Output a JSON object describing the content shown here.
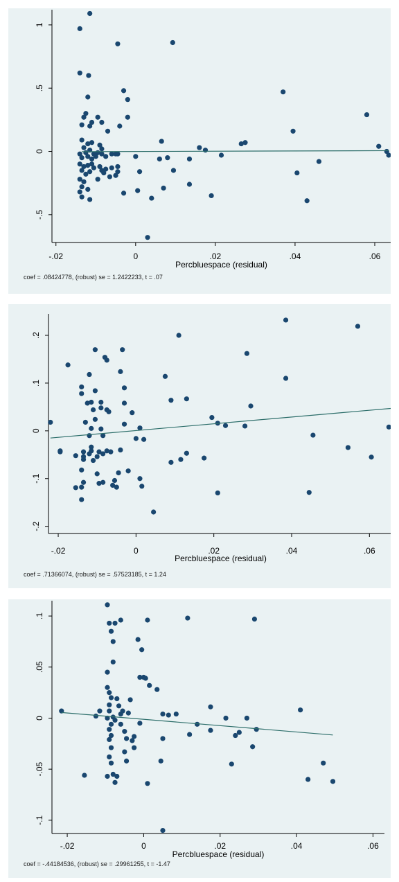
{
  "chart_data": [
    {
      "type": "scatter",
      "xlabel": "Percbluespace (residual)",
      "ylabel": "",
      "xlim": [
        -0.021,
        0.064
      ],
      "ylim": [
        -0.72,
        1.12
      ],
      "x_ticks": [
        -0.02,
        0,
        0.02,
        0.04,
        0.06
      ],
      "x_tick_labels": [
        "-.02",
        "0",
        ".02",
        ".04",
        ".06"
      ],
      "y_ticks": [
        -0.5,
        0,
        0.5,
        1
      ],
      "y_tick_labels": [
        "-.5",
        "0",
        ".5",
        "1"
      ],
      "fit_line": {
        "x": [
          -0.0135,
          0.0635
        ],
        "y": [
          -0.002,
          0.006
        ]
      },
      "note": "coef = .08424778, (robust) se = 1.2422233, t = .07",
      "points": [
        [
          -0.014,
          0.97
        ],
        [
          -0.0115,
          1.09
        ],
        [
          -0.0045,
          0.85
        ],
        [
          0.0093,
          0.86
        ],
        [
          -0.014,
          0.62
        ],
        [
          -0.0118,
          0.6
        ],
        [
          -0.003,
          0.48
        ],
        [
          -0.002,
          0.41
        ],
        [
          -0.012,
          0.43
        ],
        [
          -0.0125,
          0.3
        ],
        [
          -0.013,
          0.27
        ],
        [
          -0.0095,
          0.27
        ],
        [
          -0.011,
          0.23
        ],
        [
          -0.0135,
          0.21
        ],
        [
          -0.0115,
          0.2
        ],
        [
          -0.0085,
          0.23
        ],
        [
          -0.007,
          0.16
        ],
        [
          -0.004,
          0.2
        ],
        [
          -0.002,
          0.27
        ],
        [
          -0.0135,
          0.09
        ],
        [
          -0.012,
          0.06
        ],
        [
          -0.011,
          0.07
        ],
        [
          -0.009,
          0.05
        ],
        [
          -0.0085,
          0.02
        ],
        [
          -0.013,
          0.03
        ],
        [
          -0.0125,
          -0.01
        ],
        [
          -0.0115,
          0.01
        ],
        [
          -0.0105,
          -0.02
        ],
        [
          -0.0095,
          -0.01
        ],
        [
          -0.014,
          -0.02
        ],
        [
          -0.0135,
          -0.05
        ],
        [
          -0.012,
          -0.04
        ],
        [
          -0.011,
          -0.06
        ],
        [
          -0.01,
          -0.04
        ],
        [
          -0.0085,
          -0.02
        ],
        [
          -0.0075,
          -0.04
        ],
        [
          -0.006,
          -0.02
        ],
        [
          -0.005,
          -0.02
        ],
        [
          -0.014,
          -0.1
        ],
        [
          -0.013,
          -0.12
        ],
        [
          -0.012,
          -0.11
        ],
        [
          -0.011,
          -0.1
        ],
        [
          -0.0105,
          -0.13
        ],
        [
          -0.009,
          -0.12
        ],
        [
          -0.0085,
          -0.15
        ],
        [
          -0.0075,
          -0.14
        ],
        [
          -0.006,
          -0.13
        ],
        [
          -0.0045,
          -0.12
        ],
        [
          -0.0135,
          -0.15
        ],
        [
          -0.0125,
          -0.18
        ],
        [
          -0.0115,
          -0.16
        ],
        [
          -0.008,
          -0.17
        ],
        [
          -0.0065,
          -0.2
        ],
        [
          -0.014,
          -0.22
        ],
        [
          -0.013,
          -0.24
        ],
        [
          -0.0135,
          -0.28
        ],
        [
          -0.012,
          -0.3
        ],
        [
          -0.0095,
          -0.22
        ],
        [
          -0.005,
          -0.19
        ],
        [
          -0.0045,
          -0.16
        ],
        [
          -0.0135,
          -0.36
        ],
        [
          -0.0115,
          -0.38
        ],
        [
          -0.003,
          -0.33
        ],
        [
          -0.014,
          -0.32
        ],
        [
          -0.0045,
          -0.02
        ],
        [
          0.0,
          -0.04
        ],
        [
          0.001,
          -0.16
        ],
        [
          0.0005,
          -0.31
        ],
        [
          0.003,
          -0.68
        ],
        [
          0.004,
          -0.37
        ],
        [
          0.006,
          -0.06
        ],
        [
          0.0065,
          0.08
        ],
        [
          0.007,
          -0.29
        ],
        [
          0.008,
          -0.05
        ],
        [
          0.0095,
          -0.15
        ],
        [
          0.0135,
          -0.06
        ],
        [
          0.0135,
          -0.26
        ],
        [
          0.016,
          0.03
        ],
        [
          0.0175,
          0.01
        ],
        [
          0.019,
          -0.35
        ],
        [
          0.0215,
          -0.03
        ],
        [
          0.0265,
          0.06
        ],
        [
          0.0275,
          0.07
        ],
        [
          0.037,
          0.47
        ],
        [
          0.0395,
          0.16
        ],
        [
          0.0405,
          -0.17
        ],
        [
          0.043,
          -0.39
        ],
        [
          0.046,
          -0.08
        ],
        [
          0.058,
          0.29
        ],
        [
          0.061,
          0.04
        ],
        [
          0.063,
          0.0
        ],
        [
          0.0635,
          -0.03
        ]
      ]
    },
    {
      "type": "scatter",
      "xlabel": "Percbluespace (residual)",
      "ylabel": "",
      "xlim": [
        -0.0225,
        0.066
      ],
      "ylim": [
        -0.215,
        0.245
      ],
      "x_ticks": [
        -0.02,
        0,
        0.02,
        0.04,
        0.06
      ],
      "x_tick_labels": [
        "-.02",
        "0",
        ".02",
        ".04",
        ".06"
      ],
      "y_ticks": [
        -0.2,
        -0.1,
        0,
        0.1,
        0.2
      ],
      "y_tick_labels": [
        "-.2",
        "-.1",
        "0",
        ".1",
        ".2"
      ],
      "fit_line": {
        "x": [
          -0.022,
          0.0655
        ],
        "y": [
          -0.015,
          0.047
        ]
      },
      "note": "coef = .71366074, (robust) se = .57523185, t = 1.24",
      "points": [
        [
          -0.022,
          0.018
        ],
        [
          -0.0195,
          -0.042
        ],
        [
          -0.0175,
          0.138
        ],
        [
          -0.0195,
          -0.044
        ],
        [
          -0.0155,
          -0.119
        ],
        [
          -0.0155,
          -0.052
        ],
        [
          -0.014,
          -0.118
        ],
        [
          -0.014,
          -0.144
        ],
        [
          -0.014,
          -0.082
        ],
        [
          -0.014,
          0.092
        ],
        [
          -0.014,
          0.078
        ],
        [
          -0.0135,
          -0.108
        ],
        [
          -0.0135,
          -0.06
        ],
        [
          -0.0135,
          -0.044
        ],
        [
          -0.013,
          0.018
        ],
        [
          -0.012,
          0.118
        ],
        [
          -0.0125,
          0.058
        ],
        [
          -0.012,
          -0.01
        ],
        [
          -0.0115,
          0.005
        ],
        [
          -0.0115,
          -0.034
        ],
        [
          -0.0115,
          -0.042
        ],
        [
          -0.0115,
          0.06
        ],
        [
          -0.011,
          0.044
        ],
        [
          -0.011,
          -0.062
        ],
        [
          -0.0105,
          0.084
        ],
        [
          -0.0105,
          0.024
        ],
        [
          -0.01,
          -0.054
        ],
        [
          -0.01,
          -0.09
        ],
        [
          -0.0095,
          -0.044
        ],
        [
          -0.0095,
          -0.11
        ],
        [
          -0.009,
          0.06
        ],
        [
          -0.009,
          0.048
        ],
        [
          -0.009,
          0.004
        ],
        [
          -0.0085,
          -0.01
        ],
        [
          -0.0085,
          -0.048
        ],
        [
          -0.0085,
          -0.108
        ],
        [
          -0.008,
          0.154
        ],
        [
          -0.0075,
          0.148
        ],
        [
          -0.0075,
          0.044
        ],
        [
          -0.007,
          0.04
        ],
        [
          -0.0065,
          -0.044
        ],
        [
          -0.006,
          -0.114
        ],
        [
          -0.0055,
          -0.104
        ],
        [
          -0.005,
          -0.118
        ],
        [
          -0.0045,
          -0.088
        ],
        [
          -0.004,
          -0.04
        ],
        [
          -0.004,
          0.124
        ],
        [
          -0.0035,
          0.17
        ],
        [
          -0.003,
          0.09
        ],
        [
          -0.003,
          0.058
        ],
        [
          -0.003,
          0.014
        ],
        [
          -0.002,
          -0.084
        ],
        [
          -0.001,
          0.038
        ],
        [
          0.0,
          -0.016
        ],
        [
          0.001,
          0.006
        ],
        [
          0.001,
          -0.1
        ],
        [
          0.0015,
          -0.116
        ],
        [
          0.002,
          -0.018
        ],
        [
          0.0045,
          -0.17
        ],
        [
          0.0075,
          0.114
        ],
        [
          0.009,
          0.064
        ],
        [
          0.009,
          -0.066
        ],
        [
          0.011,
          0.2
        ],
        [
          0.0115,
          -0.06
        ],
        [
          0.013,
          0.067
        ],
        [
          0.013,
          -0.047
        ],
        [
          0.0175,
          -0.057
        ],
        [
          0.0195,
          0.028
        ],
        [
          0.021,
          0.016
        ],
        [
          0.021,
          -0.13
        ],
        [
          0.023,
          0.011
        ],
        [
          0.028,
          0.01
        ],
        [
          0.0285,
          0.162
        ],
        [
          0.0295,
          0.052
        ],
        [
          0.0385,
          0.232
        ],
        [
          0.0385,
          0.11
        ],
        [
          0.0445,
          -0.129
        ],
        [
          0.0455,
          -0.009
        ],
        [
          0.0545,
          -0.035
        ],
        [
          0.057,
          0.219
        ],
        [
          0.0605,
          -0.055
        ],
        [
          0.065,
          0.008
        ],
        [
          -0.0105,
          0.17
        ],
        [
          -0.0135,
          -0.054
        ],
        [
          -0.012,
          -0.048
        ],
        [
          -0.0075,
          -0.042
        ]
      ]
    },
    {
      "type": "scatter",
      "xlabel": "Percbluespace (residual)",
      "ylabel": "",
      "xlim": [
        -0.024,
        0.063
      ],
      "ylim": [
        -0.113,
        0.115
      ],
      "x_ticks": [
        -0.02,
        0,
        0.02,
        0.04,
        0.06
      ],
      "x_tick_labels": [
        "-.02",
        "0",
        ".02",
        ".04",
        ".06"
      ],
      "y_ticks": [
        -0.1,
        -0.05,
        0,
        0.05,
        0.1
      ],
      "y_tick_labels": [
        "-.1",
        "-.05",
        "0",
        ".05",
        ".1"
      ],
      "fit_line": {
        "x": [
          -0.0215,
          0.0495
        ],
        "y": [
          0.0055,
          -0.0165
        ]
      },
      "note": "coef = -.44184536, (robust) se = .29961255, t = -1.47",
      "points": [
        [
          -0.0215,
          0.007
        ],
        [
          -0.0155,
          -0.056
        ],
        [
          -0.0125,
          0.002
        ],
        [
          -0.0115,
          0.007
        ],
        [
          -0.0095,
          0.111
        ],
        [
          -0.009,
          0.093
        ],
        [
          -0.0085,
          0.085
        ],
        [
          -0.008,
          0.075
        ],
        [
          -0.008,
          0.055
        ],
        [
          -0.0075,
          0.093
        ],
        [
          -0.006,
          0.096
        ],
        [
          -0.0095,
          0.045
        ],
        [
          -0.0095,
          0.03
        ],
        [
          -0.009,
          0.025
        ],
        [
          -0.0085,
          0.02
        ],
        [
          -0.009,
          0.013
        ],
        [
          -0.009,
          0.007
        ],
        [
          -0.008,
          0.001
        ],
        [
          -0.0095,
          0.0
        ],
        [
          -0.0085,
          -0.006
        ],
        [
          -0.009,
          -0.011
        ],
        [
          -0.0085,
          -0.017
        ],
        [
          -0.009,
          -0.021
        ],
        [
          -0.0085,
          -0.029
        ],
        [
          -0.009,
          -0.038
        ],
        [
          -0.0085,
          -0.044
        ],
        [
          -0.008,
          -0.055
        ],
        [
          -0.0075,
          -0.063
        ],
        [
          -0.0095,
          -0.057
        ],
        [
          -0.007,
          -0.057
        ],
        [
          -0.007,
          0.019
        ],
        [
          -0.0065,
          0.012
        ],
        [
          -0.006,
          0.004
        ],
        [
          -0.006,
          -0.006
        ],
        [
          -0.005,
          -0.013
        ],
        [
          -0.005,
          -0.033
        ],
        [
          -0.0045,
          -0.042
        ],
        [
          -0.004,
          0.005
        ],
        [
          -0.0035,
          0.018
        ],
        [
          -0.0025,
          -0.018
        ],
        [
          -0.0025,
          -0.029
        ],
        [
          -0.0015,
          0.077
        ],
        [
          -0.001,
          0.04
        ],
        [
          -0.001,
          -0.005
        ],
        [
          -0.0005,
          0.067
        ],
        [
          0.0,
          0.04
        ],
        [
          0.0005,
          0.039
        ],
        [
          0.001,
          0.096
        ],
        [
          0.001,
          -0.064
        ],
        [
          0.0015,
          0.032
        ],
        [
          0.0035,
          0.028
        ],
        [
          0.0045,
          -0.042
        ],
        [
          0.005,
          0.004
        ],
        [
          0.005,
          -0.02
        ],
        [
          0.005,
          -0.11
        ],
        [
          0.0065,
          0.003
        ],
        [
          0.0085,
          0.004
        ],
        [
          0.0115,
          0.098
        ],
        [
          0.012,
          -0.016
        ],
        [
          0.014,
          -0.006
        ],
        [
          0.0175,
          0.011
        ],
        [
          0.0175,
          -0.012
        ],
        [
          0.0215,
          0.0
        ],
        [
          0.023,
          -0.045
        ],
        [
          0.024,
          -0.017
        ],
        [
          0.025,
          -0.014
        ],
        [
          0.027,
          0.0
        ],
        [
          0.0285,
          -0.028
        ],
        [
          0.029,
          0.097
        ],
        [
          0.0295,
          -0.011
        ],
        [
          0.041,
          0.008
        ],
        [
          0.043,
          -0.06
        ],
        [
          0.047,
          -0.044
        ],
        [
          0.0495,
          -0.062
        ],
        [
          -0.0055,
          0.007
        ],
        [
          -0.003,
          -0.022
        ],
        [
          -0.0045,
          -0.02
        ],
        [
          -0.0075,
          -0.002
        ]
      ]
    }
  ]
}
